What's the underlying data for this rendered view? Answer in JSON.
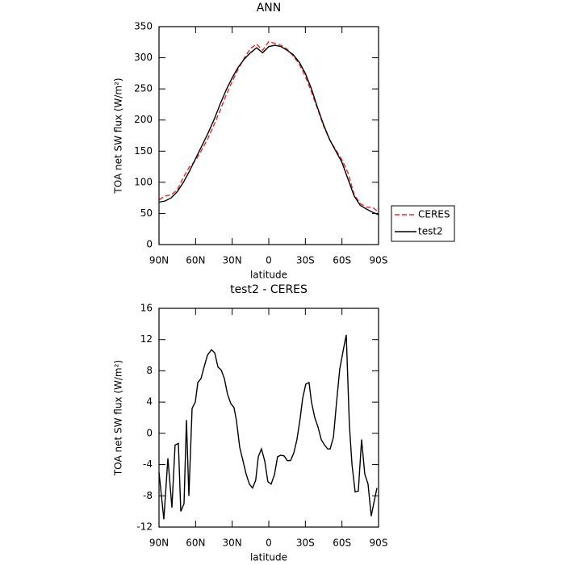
{
  "chart_data": [
    {
      "type": "line",
      "title": "ANN",
      "ylabel": "TOA net SW flux (W/m²)",
      "xlabel": "latitude",
      "xlim": [
        90,
        -90
      ],
      "ylim": [
        0,
        350
      ],
      "xticks": [
        {
          "value": 90,
          "label": "90N"
        },
        {
          "value": 60,
          "label": "60N"
        },
        {
          "value": 30,
          "label": "30N"
        },
        0,
        {
          "value": -30,
          "label": "30S"
        },
        {
          "value": -60,
          "label": "60S"
        },
        {
          "value": -90,
          "label": "90S"
        }
      ],
      "yticks": [
        0,
        50,
        100,
        150,
        200,
        250,
        300,
        350
      ],
      "legend": "right",
      "series": [
        {
          "name": "CERES",
          "color": "#e8292b",
          "linestyle": "dashed",
          "x": [
            90,
            85,
            80,
            75,
            70,
            65,
            60,
            55,
            50,
            45,
            40,
            35,
            30,
            25,
            20,
            15,
            10,
            5,
            0,
            -5,
            -10,
            -15,
            -20,
            -25,
            -30,
            -35,
            -40,
            -45,
            -50,
            -55,
            -60,
            -65,
            -70,
            -75,
            -80,
            -85,
            -90
          ],
          "values": [
            72,
            78,
            80,
            88,
            108,
            125,
            135,
            152,
            170,
            192,
            215,
            240,
            262,
            282,
            300,
            315,
            322,
            312,
            326,
            323,
            320,
            314,
            303,
            290,
            270,
            245,
            218,
            190,
            168,
            152,
            136,
            115,
            80,
            66,
            60,
            60,
            52
          ]
        },
        {
          "name": "test2",
          "color": "#000000",
          "linestyle": "solid",
          "x": [
            90,
            85,
            80,
            75,
            70,
            65,
            60,
            55,
            50,
            45,
            40,
            35,
            30,
            25,
            20,
            15,
            10,
            5,
            0,
            -5,
            -10,
            -15,
            -20,
            -25,
            -30,
            -35,
            -40,
            -45,
            -50,
            -55,
            -60,
            -65,
            -70,
            -75,
            -80,
            -85,
            -90
          ],
          "values": [
            68,
            70,
            75,
            85,
            100,
            118,
            138,
            158,
            178,
            200,
            225,
            248,
            268,
            285,
            298,
            308,
            316,
            308,
            318,
            320,
            318,
            312,
            305,
            293,
            275,
            250,
            220,
            192,
            168,
            150,
            132,
            105,
            78,
            63,
            57,
            52,
            48
          ]
        }
      ]
    },
    {
      "type": "line",
      "title": "test2 - CERES",
      "ylabel": "TOA net SW flux (W/m²)",
      "xlabel": "latitude",
      "xlim": [
        90,
        -90
      ],
      "ylim": [
        -12,
        16
      ],
      "xticks": [
        {
          "value": 90,
          "label": "90N"
        },
        {
          "value": 60,
          "label": "60N"
        },
        {
          "value": 30,
          "label": "30N"
        },
        0,
        {
          "value": -30,
          "label": "30S"
        },
        {
          "value": -60,
          "label": "60S"
        },
        {
          "value": -90,
          "label": "90S"
        }
      ],
      "yticks": [
        -12,
        -8,
        -4,
        0,
        4,
        8,
        12,
        16
      ],
      "series": [
        {
          "name": "test2 - CERES",
          "color": "#000000",
          "linestyle": "solid",
          "x": [
            90,
            86,
            82.7,
            79.4,
            76.8,
            74.1,
            72.1,
            69.5,
            67.5,
            65.5,
            62.9,
            60.2,
            58.2,
            55.6,
            53,
            50.3,
            47,
            44.3,
            41.7,
            39,
            36.4,
            33.8,
            31.1,
            28.5,
            26.5,
            23.8,
            21.2,
            18.6,
            15.9,
            13.3,
            10.7,
            8.6,
            6,
            3.4,
            0.7,
            -1.9,
            -4.6,
            -7.2,
            -9.8,
            -12.6,
            -15.2,
            -17.8,
            -20.5,
            -23.1,
            -25.8,
            -27.8,
            -30.4,
            -33,
            -35,
            -37.7,
            -40.4,
            -43,
            -45.7,
            -48.3,
            -50.3,
            -53,
            -55.6,
            -58.2,
            -60.9,
            -63.5,
            -66.1,
            -68.2,
            -70.8,
            -73.4,
            -76.1,
            -78.7,
            -81.4,
            -84,
            -86,
            -88.7
          ],
          "values": [
            -5,
            -11,
            -3.2,
            -9.5,
            -1.5,
            -1.3,
            -10,
            -9,
            1.7,
            -8,
            3.2,
            4,
            6.5,
            7,
            8.5,
            10,
            10.7,
            10.3,
            8.5,
            8.1,
            7,
            5,
            3.8,
            3.3,
            1.6,
            -1.8,
            -3.5,
            -5.2,
            -6.5,
            -7,
            -6,
            -3,
            -2,
            -3.5,
            -6.2,
            -6.5,
            -5.3,
            -3,
            -2.8,
            -2.9,
            -3.5,
            -3.5,
            -2.5,
            -0.8,
            2,
            4.5,
            6.3,
            6.5,
            4,
            2,
            0.8,
            -0.8,
            -1.5,
            -2,
            -2,
            -0.5,
            4,
            8.2,
            10.5,
            12.6,
            1,
            -4,
            -7.5,
            -7.4,
            -0.8,
            -5.2,
            -6.5,
            -10.6,
            -9,
            -7
          ]
        }
      ]
    }
  ]
}
